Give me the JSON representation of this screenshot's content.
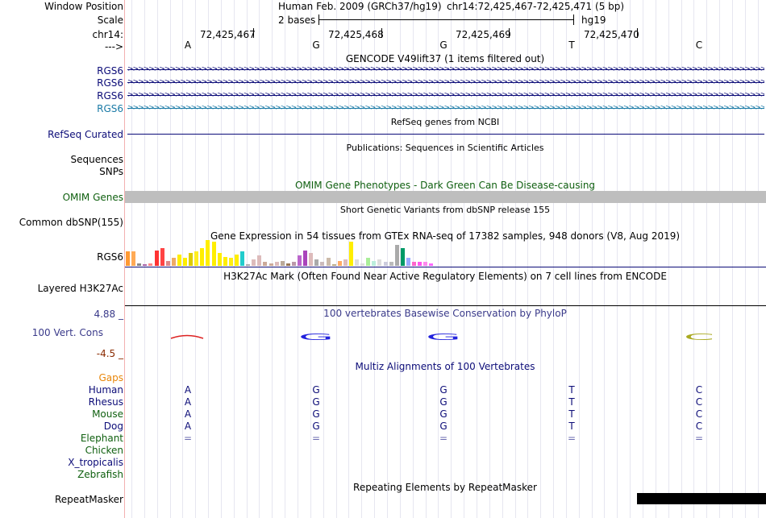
{
  "header": {
    "window_position_label": "Window Position",
    "scale_label": "Scale",
    "chrom_label": "chr14:",
    "strand_label": "--->",
    "assembly": "Human Feb. 2009 (GRCh37/hg19)",
    "position": "chr14:72,425,467-72,425,471 (5 bp)",
    "scale_text": "2 bases",
    "db": "hg19",
    "ticks": [
      "72,425,467",
      "72,425,468",
      "72,425,469",
      "72,425,470"
    ],
    "bases": [
      "A",
      "G",
      "G",
      "T",
      "C"
    ]
  },
  "tracks": {
    "gencode": {
      "title": "GENCODE V49lift37 (1 items filtered out)",
      "items": [
        "RGS6",
        "RGS6",
        "RGS6",
        "RGS6"
      ],
      "colors": [
        "#0c0c78",
        "#0c0c78",
        "#0c0c78",
        "#1a7aa6"
      ]
    },
    "refseq": {
      "label": "RefSeq Curated",
      "title": "RefSeq genes from NCBI"
    },
    "publications": {
      "title": "Publications: Sequences in Scientific Articles",
      "labels": [
        "Sequences",
        "SNPs"
      ]
    },
    "omim": {
      "label": "OMIM Genes",
      "title": "OMIM Gene Phenotypes - Dark Green Can Be Disease-causing",
      "color": "#106010"
    },
    "dbsnp": {
      "label": "Common dbSNP(155)",
      "title": "Short Genetic Variants from dbSNP release 155"
    },
    "gtex": {
      "label": "RGS6",
      "title": "Gene Expression in 54 tissues from GTEx RNA-seq of 17382 samples, 948 donors (V8, Aug 2019)",
      "values": [
        0.55,
        0.55,
        0.1,
        0.05,
        0.1,
        0.6,
        0.7,
        0.2,
        0.3,
        0.45,
        0.3,
        0.5,
        0.55,
        0.7,
        1.0,
        0.95,
        0.5,
        0.35,
        0.3,
        0.45,
        0.55,
        0.05,
        0.25,
        0.4,
        0.15,
        0.1,
        0.15,
        0.2,
        0.1,
        0.15,
        0.4,
        0.6,
        0.5,
        0.25,
        0.15,
        0.3,
        0.05,
        0.2,
        0.25,
        0.95,
        0.25,
        0.1,
        0.3,
        0.2,
        0.25,
        0.15,
        0.15,
        0.8,
        0.7,
        0.3,
        0.15,
        0.15,
        0.15,
        0.1
      ],
      "colors": [
        "#ff9933",
        "#ffaa55",
        "#888888",
        "#aa66aa",
        "#ff8888",
        "#ff3333",
        "#ff4444",
        "#dd8888",
        "#eeaa66",
        "#ffee00",
        "#ffee00",
        "#ddcc00",
        "#ffee22",
        "#ffee00",
        "#ffee00",
        "#ffee00",
        "#ffee00",
        "#ffee00",
        "#ffee11",
        "#ffee00",
        "#22cccc",
        "#aaaaaa",
        "#ddbbbb",
        "#ddbbbb",
        "#ccaa99",
        "#ccaa99",
        "#ddbbbb",
        "#bbaa99",
        "#997755",
        "#bb99aa",
        "#bb66cc",
        "#aa44bb",
        "#ddbbbb",
        "#aaaaaa",
        "#ccbbbb",
        "#ccbbaa",
        "#bbaa88",
        "#ffaa66",
        "#ddbbbb",
        "#ffee00",
        "#dddddd",
        "#dddddd",
        "#aaee99",
        "#bbeedd",
        "#dddddd",
        "#ccccdd",
        "#bbbbbb",
        "#aaaaaa",
        "#009966",
        "#99aaff",
        "#ff66cc",
        "#ff55ee",
        "#ff88ee",
        "#ff66ff"
      ]
    },
    "h3k27ac": {
      "label": "Layered H3K27Ac",
      "title": "H3K27Ac Mark (Often Found Near Active Regulatory Elements) on 7 cell lines from ENCODE"
    },
    "cons": {
      "label": "100 Vert. Cons",
      "title": "100 vertebrates Basewise Conservation by PhyloP",
      "max": "4.88 _",
      "min": "-4.5 _",
      "logo_letters": [
        "A",
        "G",
        "G",
        "",
        "C"
      ]
    },
    "multiz": {
      "title": "Multiz Alignments of 100 Vertebrates",
      "species": [
        {
          "name": "Gaps",
          "color": "#e8860a",
          "seq": [
            "",
            "",
            "",
            "",
            ""
          ]
        },
        {
          "name": "Human",
          "color": "#0c0c78",
          "seq": [
            "A",
            "G",
            "G",
            "T",
            "C"
          ]
        },
        {
          "name": "Rhesus",
          "color": "#0c0c78",
          "seq": [
            "A",
            "G",
            "G",
            "T",
            "C"
          ]
        },
        {
          "name": "Mouse",
          "color": "#106010",
          "seq": [
            "A",
            "G",
            "G",
            "T",
            "C"
          ]
        },
        {
          "name": "Dog",
          "color": "#0c0c78",
          "seq": [
            "A",
            "G",
            "G",
            "T",
            "C"
          ]
        },
        {
          "name": "Elephant",
          "color": "#106010",
          "seq": [
            "=",
            "=",
            "=",
            "=",
            "="
          ]
        },
        {
          "name": "Chicken",
          "color": "#106010",
          "seq": [
            "",
            "",
            "",
            "",
            ""
          ]
        },
        {
          "name": "X_tropicalis",
          "color": "#0c0c78",
          "seq": [
            "",
            "",
            "",
            "",
            ""
          ]
        },
        {
          "name": "Zebrafish",
          "color": "#106010",
          "seq": [
            "",
            "",
            "",
            "",
            ""
          ]
        }
      ]
    },
    "repeatmasker": {
      "label": "RepeatMasker",
      "title": "Repeating Elements by RepeatMasker"
    }
  },
  "colors": {
    "accent": "#0c0c78",
    "divider": "#f3b0b0",
    "omim_bar": "#bebebe",
    "min_color": "#8a2a00",
    "max_color": "#3a3a8a"
  }
}
